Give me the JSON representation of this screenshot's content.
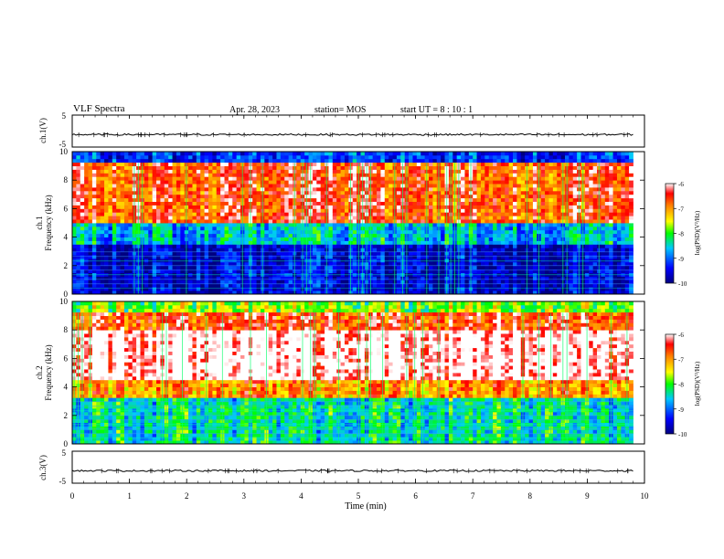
{
  "header": {
    "title": "VLF Spectra",
    "date": "Apr. 28, 2023",
    "station": "station= MOS",
    "start": "start  UT =   8 : 10 : 1"
  },
  "chart_data": [
    {
      "type": "line",
      "panel": "ch1-waveform",
      "ylabel": "ch.1(V)",
      "ylim": [
        -5,
        5
      ],
      "yticks": [
        "5",
        "-5"
      ],
      "series": [
        {
          "values_summary": "flat trace near -1 V across 0-9.8 min"
        }
      ]
    },
    {
      "type": "heatmap",
      "panel": "ch1-spectrogram",
      "ylabel": "ch.1\nFrequency (kHz)",
      "ylim": [
        0,
        10
      ],
      "yticks": [
        "0",
        "2",
        "4",
        "6",
        "8",
        "10"
      ],
      "xlim": [
        0,
        9.8
      ],
      "colorbar": {
        "label": "log(PSD)(V²/Hz)",
        "range": [
          -10,
          -6
        ],
        "ticks": [
          "-6",
          "-7",
          "-8",
          "-9",
          "-10"
        ]
      },
      "bands": [
        {
          "freq_khz": [
            0,
            3.5
          ],
          "level": -9.6
        },
        {
          "freq_khz": [
            3.5,
            5.0
          ],
          "level": -8.6
        },
        {
          "freq_khz": [
            5.0,
            9.3
          ],
          "level": -6.6
        },
        {
          "freq_khz": [
            9.3,
            10
          ],
          "level": -9.2
        }
      ]
    },
    {
      "type": "heatmap",
      "panel": "ch2-spectrogram",
      "ylabel": "ch.2\nFrequency (kHz)",
      "ylim": [
        0,
        10
      ],
      "yticks": [
        "0",
        "2",
        "4",
        "6",
        "8",
        "10"
      ],
      "xlim": [
        0,
        9.8
      ],
      "colorbar": {
        "label": "log(PSD)(V²/Hz)",
        "range": [
          -10,
          -6
        ],
        "ticks": [
          "-6",
          "-7",
          "-8",
          "-9",
          "-10"
        ]
      },
      "bands": [
        {
          "freq_khz": [
            0,
            3.2
          ],
          "level": -8.4
        },
        {
          "freq_khz": [
            3.2,
            4.6
          ],
          "level": -7.0
        },
        {
          "freq_khz": [
            4.6,
            8.0
          ],
          "level": -5.9
        },
        {
          "freq_khz": [
            8.0,
            9.2
          ],
          "level": -6.6
        },
        {
          "freq_khz": [
            9.2,
            10
          ],
          "level": -7.8
        }
      ]
    },
    {
      "type": "line",
      "panel": "ch3-waveform",
      "ylabel": "ch.3(V)",
      "ylim": [
        -5,
        5
      ],
      "yticks": [
        "5",
        "-5"
      ],
      "xlabel": "Time (min)",
      "xlim": [
        0,
        10
      ],
      "xticks": [
        "0",
        "1",
        "2",
        "3",
        "4",
        "5",
        "6",
        "7",
        "8",
        "9",
        "10"
      ],
      "series": [
        {
          "values_summary": "flat trace near -1 V across 0-9.8 min"
        }
      ]
    }
  ],
  "colors": {
    "scale": [
      "#000080",
      "#0000ff",
      "#00c8ff",
      "#00ff00",
      "#ffff00",
      "#ff8000",
      "#ff0000",
      "#ffffff"
    ]
  }
}
